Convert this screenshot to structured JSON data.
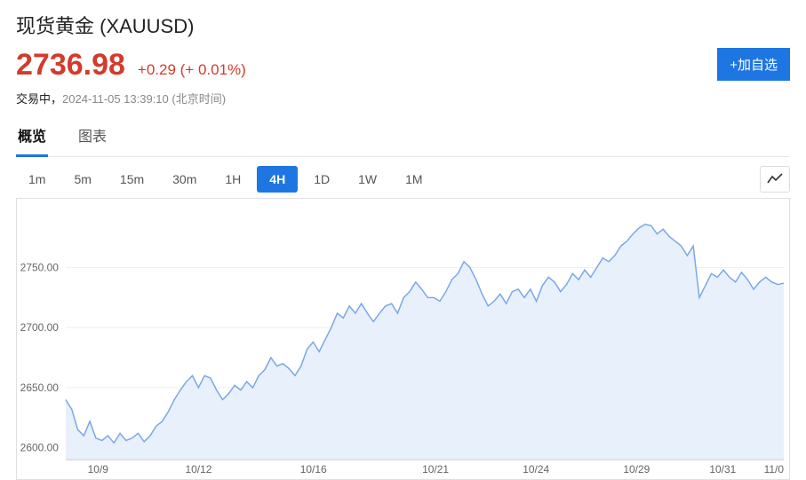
{
  "header": {
    "title": "现货黄金 (XAUUSD)",
    "price": "2736.98",
    "change": "+0.29 (+ 0.01%)",
    "change_color": "#d23b2d",
    "price_color": "#d23b2d",
    "status_prefix": "交易中，",
    "timestamp": "2024-11-05 13:39:10 (北京时间)",
    "add_button": "+加自选"
  },
  "tabs": {
    "items": [
      "概览",
      "图表"
    ],
    "active_index": 0
  },
  "timeframes": {
    "items": [
      "1m",
      "5m",
      "15m",
      "30m",
      "1H",
      "4H",
      "1D",
      "1W",
      "1M"
    ],
    "active_index": 5
  },
  "chart": {
    "type": "area",
    "line_color": "#7aa8e6",
    "fill_color": "#e8f0fb",
    "background_color": "#ffffff",
    "grid_color": "#eeeeee",
    "axis_color": "#cccccc",
    "label_color": "#666666",
    "label_fontsize": 12,
    "ylim": [
      2590,
      2800
    ],
    "yticks": [
      2600.0,
      2650.0,
      2700.0,
      2750.0
    ],
    "ytick_labels": [
      "2600.00",
      "2650.00",
      "2700.00",
      "2750.00"
    ],
    "xtick_labels": [
      "10/9",
      "10/12",
      "10/16",
      "10/21",
      "10/24",
      "10/29",
      "10/31",
      "11/0"
    ],
    "xtick_positions": [
      0.045,
      0.185,
      0.345,
      0.515,
      0.655,
      0.795,
      0.915,
      1.0
    ],
    "series": {
      "x": [
        0,
        1,
        2,
        3,
        4,
        5,
        6,
        7,
        8,
        9,
        10,
        11,
        12,
        13,
        14,
        15,
        16,
        17,
        18,
        19,
        20,
        21,
        22,
        23,
        24,
        25,
        26,
        27,
        28,
        29,
        30,
        31,
        32,
        33,
        34,
        35,
        36,
        37,
        38,
        39,
        40,
        41,
        42,
        43,
        44,
        45,
        46,
        47,
        48,
        49,
        50,
        51,
        52,
        53,
        54,
        55,
        56,
        57,
        58,
        59,
        60,
        61,
        62,
        63,
        64,
        65,
        66,
        67,
        68,
        69,
        70,
        71,
        72,
        73,
        74,
        75,
        76,
        77,
        78,
        79,
        80,
        81,
        82,
        83,
        84,
        85,
        86,
        87,
        88,
        89,
        90,
        91,
        92,
        93,
        94,
        95,
        96,
        97,
        98,
        99,
        100,
        101,
        102,
        103,
        104,
        105,
        106,
        107,
        108,
        109,
        110,
        111,
        112,
        113,
        114,
        115,
        116,
        117,
        118,
        119
      ],
      "y": [
        2640,
        2632,
        2615,
        2610,
        2622,
        2608,
        2606,
        2610,
        2604,
        2612,
        2606,
        2608,
        2612,
        2605,
        2610,
        2618,
        2622,
        2630,
        2640,
        2648,
        2655,
        2660,
        2650,
        2660,
        2658,
        2648,
        2640,
        2645,
        2652,
        2648,
        2655,
        2650,
        2660,
        2665,
        2675,
        2668,
        2670,
        2666,
        2660,
        2668,
        2682,
        2688,
        2680,
        2690,
        2700,
        2712,
        2708,
        2718,
        2712,
        2720,
        2712,
        2705,
        2712,
        2718,
        2720,
        2712,
        2725,
        2730,
        2738,
        2732,
        2725,
        2725,
        2722,
        2730,
        2740,
        2745,
        2755,
        2750,
        2740,
        2728,
        2718,
        2722,
        2728,
        2720,
        2730,
        2732,
        2725,
        2732,
        2722,
        2735,
        2742,
        2738,
        2730,
        2736,
        2745,
        2740,
        2748,
        2742,
        2750,
        2758,
        2755,
        2760,
        2768,
        2772,
        2778,
        2783,
        2786,
        2785,
        2778,
        2782,
        2776,
        2772,
        2768,
        2760,
        2768,
        2725,
        2735,
        2745,
        2742,
        2748,
        2742,
        2738,
        2746,
        2740,
        2732,
        2738,
        2742,
        2738,
        2736,
        2737
      ]
    }
  }
}
